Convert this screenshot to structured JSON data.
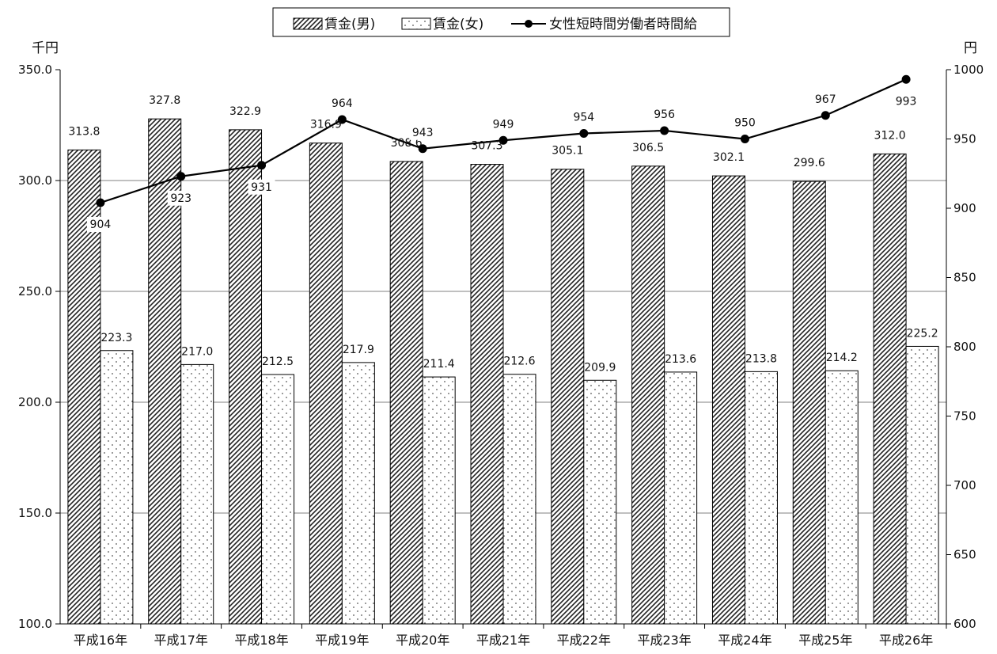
{
  "chart_data": {
    "type": "bar",
    "categories": [
      "平成16年",
      "平成17年",
      "平成18年",
      "平成19年",
      "平成20年",
      "平成21年",
      "平成22年",
      "平成23年",
      "平成24年",
      "平成25年",
      "平成26年"
    ],
    "series": [
      {
        "name": "賃金(男)",
        "type": "bar",
        "axis": "left",
        "values": [
          313.8,
          327.8,
          322.9,
          316.9,
          308.6,
          307.3,
          305.1,
          306.5,
          302.1,
          299.6,
          312.0
        ],
        "labels": [
          "313.8",
          "327.8",
          "322.9",
          "316.9",
          "308.6",
          "307.3",
          "305.1",
          "306.5",
          "302.1",
          "299.6",
          "312.0"
        ]
      },
      {
        "name": "賃金(女)",
        "type": "bar",
        "axis": "left",
        "values": [
          223.3,
          217.0,
          212.5,
          217.9,
          211.4,
          212.6,
          209.9,
          213.6,
          213.8,
          214.2,
          225.2
        ],
        "labels": [
          "223.3",
          "217.0",
          "212.5",
          "217.9",
          "211.4",
          "212.6",
          "209.9",
          "213.6",
          "213.8",
          "214.2",
          "225.2"
        ]
      },
      {
        "name": "女性短時間労働者時間給",
        "type": "line",
        "axis": "right",
        "values": [
          904,
          923,
          931,
          964,
          943,
          949,
          954,
          956,
          950,
          967,
          993
        ],
        "labels": [
          "904",
          "923",
          "931",
          "964",
          "943",
          "949",
          "954",
          "956",
          "950",
          "967",
          "993"
        ]
      }
    ],
    "y_left": {
      "unit": "千円",
      "min": 100,
      "max": 350,
      "ticks": [
        "100.0",
        "150.0",
        "200.0",
        "250.0",
        "300.0",
        "350.0"
      ]
    },
    "y_right": {
      "unit": "円",
      "min": 600,
      "max": 1000,
      "ticks": [
        "600",
        "650",
        "700",
        "750",
        "800",
        "850",
        "900",
        "950",
        "1000"
      ]
    },
    "grid": true,
    "legend_position": "top-center"
  },
  "colors": {
    "axis": "#000000",
    "grid": "#808080",
    "line": "#000000"
  }
}
